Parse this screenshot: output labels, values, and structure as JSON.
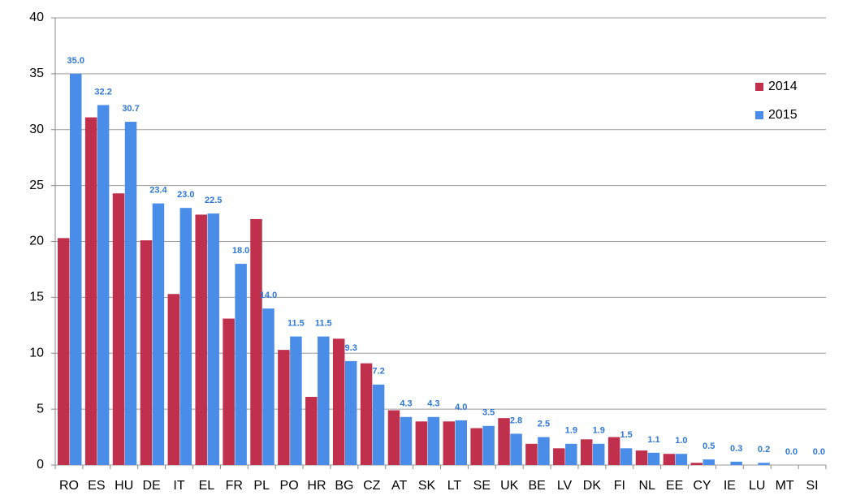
{
  "chart_data": {
    "type": "bar",
    "categories": [
      "RO",
      "ES",
      "HU",
      "DE",
      "IT",
      "EL",
      "FR",
      "PL",
      "PO",
      "HR",
      "BG",
      "CZ",
      "AT",
      "SK",
      "LT",
      "SE",
      "UK",
      "BE",
      "LV",
      "DK",
      "FI",
      "NL",
      "EE",
      "CY",
      "IE",
      "LU",
      "MT",
      "SI"
    ],
    "series": [
      {
        "name": "2014",
        "color": "#c0304d",
        "values": [
          20.3,
          31.1,
          24.3,
          20.1,
          15.3,
          22.4,
          13.1,
          22.0,
          10.3,
          6.1,
          11.3,
          9.1,
          4.9,
          3.9,
          3.9,
          3.3,
          4.2,
          1.9,
          1.5,
          2.3,
          2.5,
          1.3,
          1.0,
          0.2,
          0,
          0,
          0,
          0
        ]
      },
      {
        "name": "2015",
        "color": "#4a8de8",
        "values": [
          35,
          32.2,
          30.7,
          23.4,
          23,
          22.5,
          18,
          14,
          11.5,
          11.5,
          9.3,
          7.2,
          4.3,
          4.3,
          4,
          3.5,
          2.8,
          2.5,
          1.9,
          1.9,
          1.5,
          1.1,
          1,
          0.5,
          0.3,
          0.2,
          0,
          0
        ],
        "value_labels": [
          "35.0",
          "32.2",
          "30.7",
          "23.4",
          "23.0",
          "22.5",
          "18.0",
          "14.0",
          "11.5",
          "11.5",
          "9.3",
          "7.2",
          "4.3",
          "4.3",
          "4.0",
          "3.5",
          "2.8",
          "2.5",
          "1.9",
          "1.9",
          "1.5",
          "1.1",
          "1.0",
          "0.5",
          "0.3",
          "0.2",
          "0.0",
          "0.0"
        ]
      }
    ],
    "ylim": [
      0,
      40
    ],
    "yticks": [
      0,
      5,
      10,
      15,
      20,
      25,
      30,
      35,
      40
    ],
    "grid": true,
    "legend": "upper right"
  }
}
